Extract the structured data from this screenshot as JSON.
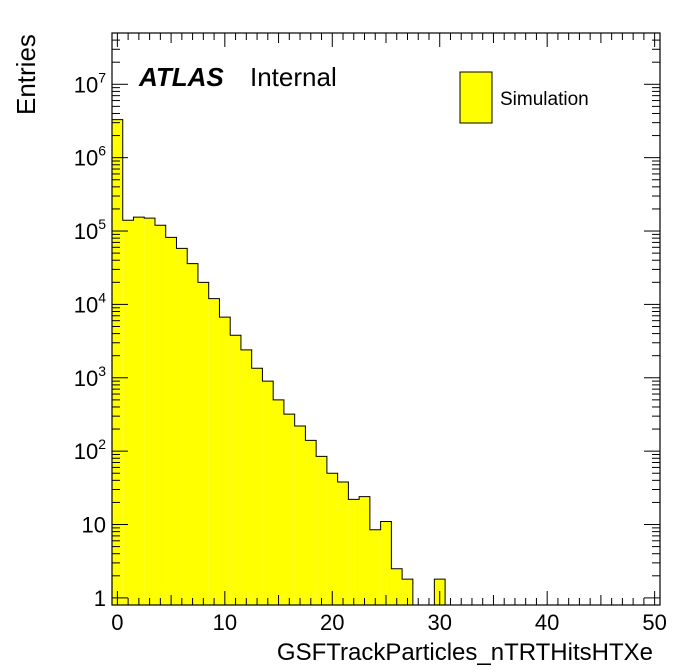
{
  "chart_data": {
    "type": "bar",
    "subtype": "histogram",
    "xlabel": "GSFTrackParticles_nTRTHitsHTXe",
    "ylabel": "Entries",
    "xlim": [
      -0.5,
      50.5
    ],
    "ylim": [
      0.8,
      50000000
    ],
    "yscale": "log",
    "bin_width": 1,
    "x_ticks": [
      "0",
      "10",
      "20",
      "30",
      "40",
      "50"
    ],
    "y_ticks": [
      {
        "value": 1,
        "label": "1"
      },
      {
        "value": 10,
        "label": "10"
      },
      {
        "value": 100,
        "label": "10",
        "sup": "2"
      },
      {
        "value": 1000,
        "label": "10",
        "sup": "3"
      },
      {
        "value": 10000,
        "label": "10",
        "sup": "4"
      },
      {
        "value": 100000,
        "label": "10",
        "sup": "5"
      },
      {
        "value": 1000000,
        "label": "10",
        "sup": "6"
      },
      {
        "value": 10000000,
        "label": "10",
        "sup": "7"
      }
    ],
    "series": [
      {
        "name": "Simulation",
        "color": "#ffff00",
        "edgecolor": "#000000",
        "bins": [
          0,
          1,
          2,
          3,
          4,
          5,
          6,
          7,
          8,
          9,
          10,
          11,
          12,
          13,
          14,
          15,
          16,
          17,
          18,
          19,
          20,
          21,
          22,
          23,
          24,
          25,
          26,
          27,
          28,
          29,
          30,
          31,
          32,
          33,
          34,
          35,
          36,
          37,
          38,
          39,
          40,
          41,
          42,
          43,
          44,
          45,
          46,
          47,
          48,
          49,
          50
        ],
        "values": [
          3300000,
          140000,
          155000,
          150000,
          120000,
          82000,
          58000,
          36000,
          20000,
          12000,
          6700,
          3800,
          2400,
          1350,
          900,
          500,
          320,
          220,
          140,
          85,
          50,
          38,
          22,
          24,
          8.5,
          11,
          2.5,
          1.8,
          0,
          0,
          1.8,
          0,
          0,
          0,
          0,
          0,
          0,
          0,
          0,
          0,
          0,
          0,
          0,
          0,
          0,
          0,
          0,
          0,
          0,
          0,
          0
        ]
      }
    ],
    "annotation": {
      "atlas": "ATLAS",
      "status": "Internal"
    },
    "legend": {
      "position": "top-right",
      "entries": [
        "Simulation"
      ]
    }
  }
}
